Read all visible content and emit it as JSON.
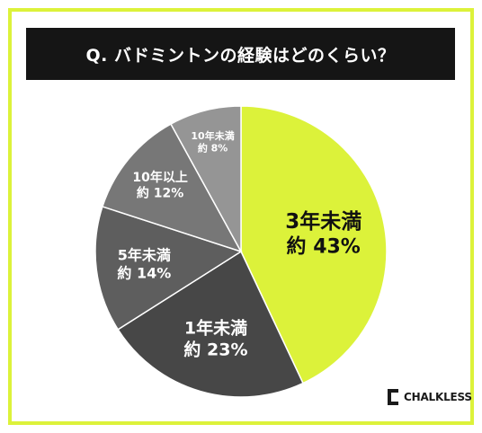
{
  "chart_data": {
    "type": "pie",
    "title": "Q. バドミントンの経験はどのくらい？",
    "slices": [
      {
        "label": "3年未満",
        "value_label": "約 43%",
        "value": 43,
        "color": "#dcf23a",
        "text_color": "#111111"
      },
      {
        "label": "1年未満",
        "value_label": "約 23%",
        "value": 23,
        "color": "#474747",
        "text_color": "#ffffff"
      },
      {
        "label": "5年未満",
        "value_label": "約 14%",
        "value": 14,
        "color": "#5e5e5e",
        "text_color": "#ffffff"
      },
      {
        "label": "10年以上",
        "value_label": "約 12%",
        "value": 12,
        "color": "#777777",
        "text_color": "#ffffff"
      },
      {
        "label": "10年未満",
        "value_label": "約 8%",
        "value": 8,
        "color": "#959595",
        "text_color": "#ffffff"
      }
    ]
  },
  "brand": {
    "name": "CHALKLESS",
    "accent": "#dcf23a"
  }
}
